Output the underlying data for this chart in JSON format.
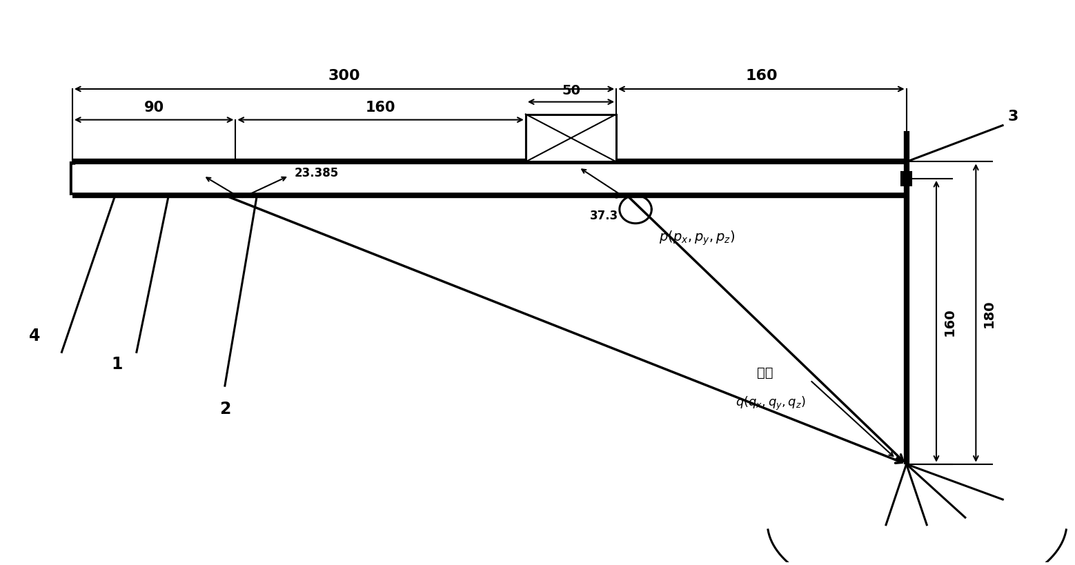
{
  "bg_color": "#ffffff",
  "lc": "#000000",
  "fig_w": 15.58,
  "fig_h": 8.2,
  "dim_300": "300",
  "dim_160_top": "160",
  "dim_90": "90",
  "dim_160_mid": "160",
  "dim_50": "50",
  "dim_23": "23.385",
  "dim_37": "37.3",
  "dim_160_vert": "160",
  "dim_180_vert": "180",
  "label_3": "3",
  "label_4": "4",
  "label_1": "1",
  "label_2": "2",
  "label_qiko": "切口"
}
